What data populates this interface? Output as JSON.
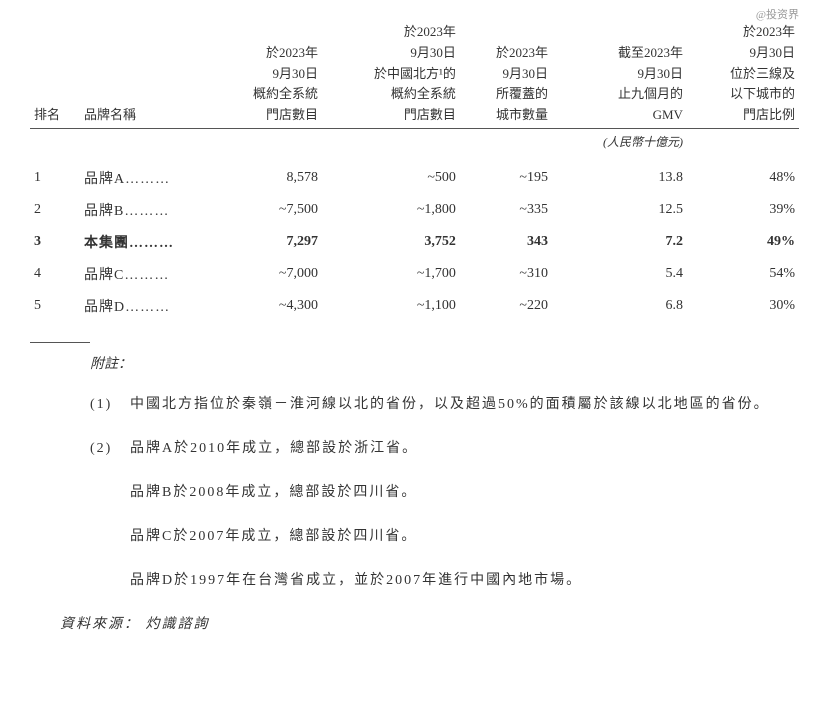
{
  "watermark": "@投资界",
  "table": {
    "headers": {
      "rank": "排名",
      "brand": "品牌名稱",
      "col1": "於2023年\n9月30日\n概約全系統\n門店數目",
      "col2": "於2023年\n9月30日\n於中國北方¹的\n概約全系統\n門店數目",
      "col3": "於2023年\n9月30日\n所覆蓋的\n城市數量",
      "col4": "截至2023年\n9月30日\n止九個月的\nGMV",
      "col5": "於2023年\n9月30日\n位於三線及\n以下城市的\n門店比例"
    },
    "unit": "(人民幣十億元)",
    "rows": [
      {
        "rank": "1",
        "name": "品牌A………",
        "c1": "8,578",
        "c2": "~500",
        "c3": "~195",
        "c4": "13.8",
        "c5": "48%",
        "bold": false
      },
      {
        "rank": "2",
        "name": "品牌B………",
        "c1": "~7,500",
        "c2": "~1,800",
        "c3": "~335",
        "c4": "12.5",
        "c5": "39%",
        "bold": false
      },
      {
        "rank": "3",
        "name": "本集團………",
        "c1": "7,297",
        "c2": "3,752",
        "c3": "343",
        "c4": "7.2",
        "c5": "49%",
        "bold": true
      },
      {
        "rank": "4",
        "name": "品牌C………",
        "c1": "~7,000",
        "c2": "~1,700",
        "c3": "~310",
        "c4": "5.4",
        "c5": "54%",
        "bold": false
      },
      {
        "rank": "5",
        "name": "品牌D………",
        "c1": "~4,300",
        "c2": "~1,100",
        "c3": "~220",
        "c4": "6.8",
        "c5": "30%",
        "bold": false
      }
    ]
  },
  "notes": {
    "title": "附註：",
    "items": [
      {
        "num": "(1)",
        "text": "中國北方指位於秦嶺－淮河線以北的省份，以及超過50%的面積屬於該線以北地區的省份。"
      },
      {
        "num": "(2)",
        "text": "品牌A於2010年成立，總部設於浙江省。"
      }
    ],
    "subs": [
      "品牌B於2008年成立，總部設於四川省。",
      "品牌C於2007年成立，總部設於四川省。",
      "品牌D於1997年在台灣省成立，並於2007年進行中國內地市場。"
    ]
  },
  "source": "資料來源： 灼識諮詢"
}
